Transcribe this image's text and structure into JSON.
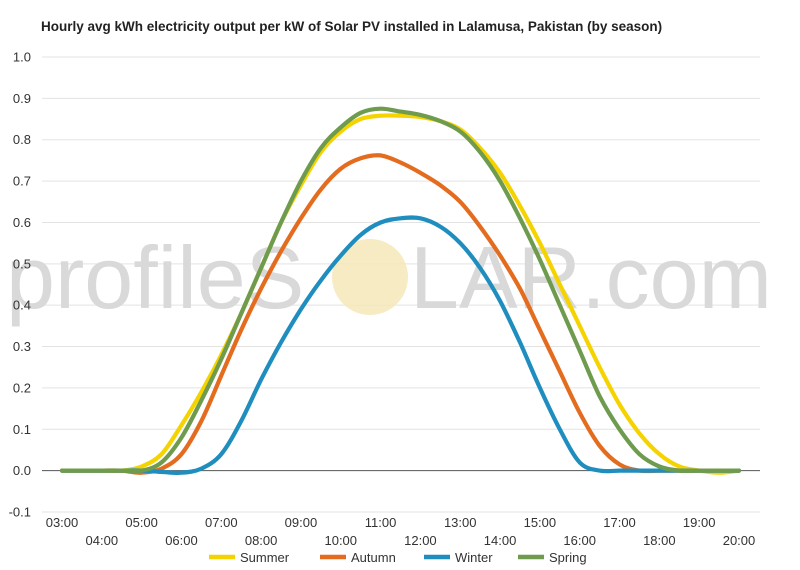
{
  "chart_data": {
    "type": "line",
    "title": "Hourly avg kWh electricity output per kW of Solar PV installed in Lalamusa, Pakistan (by season)",
    "xlabel": "",
    "ylabel": "",
    "ylim": [
      -0.1,
      1.0
    ],
    "y_ticks": [
      "1.0",
      "0.9",
      "0.8",
      "0.7",
      "0.6",
      "0.5",
      "0.4",
      "0.3",
      "0.2",
      "0.1",
      "0.0",
      "-0.1"
    ],
    "x_ticks_top": [
      "03:00",
      "05:00",
      "07:00",
      "09:00",
      "11:00",
      "13:00",
      "15:00",
      "17:00",
      "19:00"
    ],
    "x_ticks_bottom": [
      "04:00",
      "06:00",
      "08:00",
      "10:00",
      "12:00",
      "14:00",
      "16:00",
      "18:00",
      "20:00"
    ],
    "x": [
      3,
      3.5,
      4,
      4.5,
      5,
      5.5,
      6,
      6.5,
      7,
      7.5,
      8,
      8.5,
      9,
      9.5,
      10,
      10.5,
      11,
      11.5,
      12,
      12.5,
      13,
      13.5,
      14,
      14.5,
      15,
      15.5,
      16,
      16.5,
      17,
      17.5,
      18,
      18.5,
      19,
      19.5,
      20
    ],
    "series": [
      {
        "name": "Summer",
        "color": "#f5d300",
        "values": [
          0.0,
          0.0,
          0.0,
          0.0,
          0.01,
          0.04,
          0.11,
          0.19,
          0.28,
          0.38,
          0.49,
          0.6,
          0.69,
          0.77,
          0.82,
          0.85,
          0.858,
          0.858,
          0.855,
          0.845,
          0.825,
          0.78,
          0.72,
          0.64,
          0.55,
          0.45,
          0.35,
          0.25,
          0.16,
          0.09,
          0.04,
          0.01,
          0.0,
          -0.005,
          0.0
        ]
      },
      {
        "name": "Autumn",
        "color": "#e36c1f",
        "values": [
          0.0,
          0.0,
          0.0,
          0.0,
          -0.005,
          0.005,
          0.04,
          0.12,
          0.23,
          0.34,
          0.44,
          0.53,
          0.61,
          0.68,
          0.73,
          0.755,
          0.762,
          0.745,
          0.72,
          0.69,
          0.65,
          0.59,
          0.52,
          0.44,
          0.34,
          0.24,
          0.14,
          0.06,
          0.015,
          0.0,
          0.0,
          0.0,
          0.0,
          0.0,
          0.0
        ]
      },
      {
        "name": "Winter",
        "color": "#1f8ebf",
        "values": [
          0.0,
          0.0,
          0.0,
          0.0,
          0.0,
          -0.003,
          -0.005,
          0.005,
          0.04,
          0.12,
          0.22,
          0.31,
          0.39,
          0.46,
          0.52,
          0.57,
          0.6,
          0.61,
          0.61,
          0.59,
          0.55,
          0.49,
          0.41,
          0.31,
          0.2,
          0.1,
          0.02,
          0.0,
          0.0,
          0.0,
          0.0,
          0.0,
          0.0,
          0.0,
          0.0
        ]
      },
      {
        "name": "Spring",
        "color": "#6e9b4e",
        "values": [
          0.0,
          0.0,
          0.0,
          0.0,
          0.0,
          0.02,
          0.08,
          0.17,
          0.27,
          0.38,
          0.49,
          0.6,
          0.7,
          0.78,
          0.83,
          0.865,
          0.875,
          0.868,
          0.86,
          0.845,
          0.82,
          0.77,
          0.7,
          0.61,
          0.51,
          0.4,
          0.29,
          0.18,
          0.1,
          0.04,
          0.01,
          0.0,
          0.0,
          0.0,
          0.0
        ]
      }
    ],
    "legend_position": "bottom",
    "grid": true
  },
  "watermark": {
    "text_left": "profileS",
    "text_right": "LAR.com"
  }
}
